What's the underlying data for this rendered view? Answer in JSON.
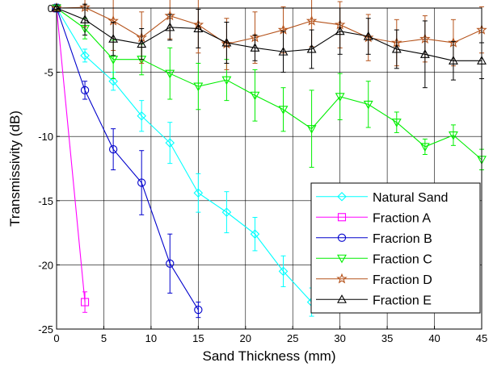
{
  "chart_data": {
    "type": "line",
    "xlabel": "Sand Thickness (mm)",
    "ylabel": "Transmissivity (dB)",
    "xlim": [
      0,
      45
    ],
    "ylim": [
      -25,
      0
    ],
    "xticks": [
      0,
      5,
      10,
      15,
      20,
      25,
      30,
      35,
      40,
      45
    ],
    "yticks": [
      0,
      -5,
      -10,
      -15,
      -20,
      -25
    ],
    "grid": true,
    "legend_position": "bottom-right",
    "series": [
      {
        "name": "Natural Sand",
        "color": "#00ffff",
        "marker": "diamond",
        "x": [
          0,
          3,
          6,
          9,
          12,
          15,
          18,
          21,
          24,
          27
        ],
        "y": [
          0,
          -3.7,
          -5.7,
          -8.4,
          -10.5,
          -14.4,
          -15.9,
          -17.6,
          -20.5,
          -22.9
        ],
        "err": [
          0.3,
          0.5,
          0.7,
          1.2,
          1.6,
          1.5,
          1.6,
          1.3,
          1.2,
          1.1
        ]
      },
      {
        "name": "Fraction A",
        "color": "#ff00ff",
        "marker": "square",
        "x": [
          0,
          3
        ],
        "y": [
          0,
          -22.9
        ],
        "err": [
          0.2,
          0.8
        ]
      },
      {
        "name": "Fracrion B",
        "color": "#0000cc",
        "marker": "circle",
        "x": [
          0,
          3,
          6,
          9,
          12,
          15
        ],
        "y": [
          0,
          -6.4,
          -11.0,
          -13.6,
          -19.9,
          -23.5
        ],
        "err": [
          0.3,
          0.7,
          1.6,
          2.5,
          2.3,
          0.6
        ]
      },
      {
        "name": "Fraction C",
        "color": "#00ee00",
        "marker": "triangle-down",
        "x": [
          0,
          3,
          6,
          9,
          12,
          15,
          18,
          21,
          24,
          27,
          30,
          33,
          36,
          39,
          42,
          45
        ],
        "y": [
          0,
          -1.6,
          -4.0,
          -4.0,
          -5.1,
          -6.1,
          -5.6,
          -6.8,
          -7.9,
          -9.4,
          -6.9,
          -7.5,
          -8.9,
          -10.8,
          -9.9,
          -11.8
        ],
        "err": [
          0.2,
          0.8,
          1.5,
          1.2,
          2.0,
          1.8,
          1.6,
          2.0,
          1.7,
          3.0,
          1.8,
          1.8,
          0.8,
          0.6,
          0.8,
          0.8
        ]
      },
      {
        "name": "Fraction D",
        "color": "#b5531b",
        "marker": "star",
        "x": [
          0,
          3,
          6,
          9,
          12,
          15,
          18,
          21,
          24,
          27,
          30,
          33,
          36,
          39,
          42,
          45
        ],
        "y": [
          0,
          0.05,
          -1.0,
          -2.3,
          -0.6,
          -1.3,
          -2.8,
          -2.3,
          -1.7,
          -1.0,
          -1.3,
          -2.3,
          -2.7,
          -2.4,
          -2.7,
          -1.7
        ],
        "err": [
          0.1,
          1.5,
          2.3,
          2.0,
          1.8,
          2.2,
          2.0,
          2.0,
          1.8,
          2.0,
          1.8,
          1.8,
          1.8,
          1.8,
          1.8,
          1.8
        ]
      },
      {
        "name": "Fraction E",
        "color": "#000000",
        "marker": "triangle-up",
        "x": [
          0,
          3,
          6,
          9,
          12,
          15,
          18,
          21,
          24,
          27,
          30,
          33,
          36,
          39,
          42,
          45
        ],
        "y": [
          0,
          -0.9,
          -2.4,
          -2.8,
          -1.5,
          -1.6,
          -2.7,
          -3.1,
          -3.4,
          -3.2,
          -1.8,
          -2.2,
          -3.2,
          -3.6,
          -4.1,
          -4.1
        ],
        "err": [
          0.1,
          1.2,
          1.3,
          1.2,
          1.0,
          1.5,
          1.6,
          1.0,
          1.6,
          1.5,
          1.8,
          1.4,
          1.5,
          2.6,
          1.5,
          1.4
        ]
      }
    ]
  }
}
